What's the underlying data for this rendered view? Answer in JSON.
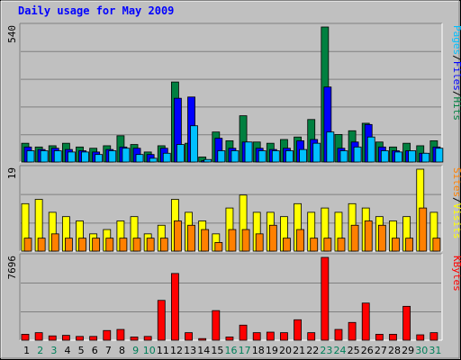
{
  "chart_data": {
    "type": "bar",
    "title": "Daily usage for May 2009",
    "categories": [
      "1",
      "2",
      "3",
      "4",
      "5",
      "6",
      "7",
      "8",
      "9",
      "10",
      "11",
      "12",
      "13",
      "14",
      "15",
      "16",
      "17",
      "18",
      "19",
      "20",
      "21",
      "22",
      "23",
      "24",
      "25",
      "26",
      "27",
      "28",
      "29",
      "30",
      "31"
    ],
    "weekend_days": [
      "2",
      "3",
      "9",
      "10",
      "16",
      "17",
      "23",
      "24",
      "30",
      "31"
    ],
    "panels": [
      {
        "id": "hits",
        "ymax_label": "540",
        "ymax": 540,
        "legend": [
          {
            "text": "Pages",
            "color": "#00c0ff"
          },
          {
            "text": "Files",
            "color": "#0000ff"
          },
          {
            "text": "Hits",
            "color": "#008040"
          }
        ],
        "series": [
          {
            "name": "Hits",
            "color": "#008040",
            "values": [
              75,
              60,
              65,
              75,
              60,
              55,
              65,
              105,
              70,
              40,
              65,
              320,
              75,
              20,
              120,
              85,
              185,
              80,
              75,
              90,
              100,
              170,
              540,
              110,
              125,
              155,
              80,
              60,
              75,
              65,
              85
            ]
          },
          {
            "name": "Files",
            "color": "#0000ff",
            "values": [
              60,
              50,
              55,
              50,
              45,
              40,
              50,
              60,
              55,
              30,
              55,
              255,
              260,
              5,
              95,
              55,
              80,
              55,
              50,
              55,
              85,
              90,
              300,
              55,
              80,
              150,
              60,
              45,
              45,
              35,
              60
            ]
          },
          {
            "name": "Pages",
            "color": "#00c0ff",
            "values": [
              45,
              45,
              45,
              40,
              40,
              30,
              45,
              55,
              30,
              15,
              35,
              70,
              145,
              10,
              45,
              45,
              80,
              45,
              45,
              45,
              50,
              75,
              120,
              45,
              60,
              100,
              45,
              40,
              45,
              35,
              55
            ]
          }
        ]
      },
      {
        "id": "visits",
        "ymax_label": "19",
        "ymax": 19,
        "legend": [
          {
            "text": "Sites",
            "color": "#ff8000"
          },
          {
            "text": "Visits",
            "color": "#ffff00"
          }
        ],
        "series": [
          {
            "name": "Visits",
            "color": "#ffff00",
            "values": [
              11,
              12,
              9,
              8,
              7,
              4,
              5,
              7,
              8,
              4,
              6,
              12,
              9,
              7,
              4,
              10,
              13,
              9,
              9,
              8,
              11,
              9,
              10,
              9,
              11,
              10,
              8,
              7,
              8,
              19,
              9
            ]
          },
          {
            "name": "Sites",
            "color": "#ff8000",
            "values": [
              3,
              3,
              4,
              3,
              3,
              3,
              3,
              3,
              3,
              3,
              3,
              7,
              6,
              5,
              2,
              5,
              5,
              4,
              6,
              3,
              5,
              3,
              3,
              3,
              6,
              7,
              6,
              3,
              3,
              10,
              3
            ]
          }
        ]
      },
      {
        "id": "kbytes",
        "ymax_label": "7696",
        "ymax": 7696,
        "legend": [
          {
            "text": "KBytes",
            "color": "#ff0000"
          }
        ],
        "series": [
          {
            "name": "KBytes",
            "color": "#ff0000",
            "values": [
              550,
              700,
              400,
              450,
              350,
              350,
              900,
              1000,
              300,
              350,
              3700,
              6200,
              700,
              150,
              2750,
              300,
              1400,
              700,
              750,
              700,
              1900,
              700,
              7696,
              1000,
              1650,
              3450,
              550,
              550,
              3150,
              500,
              700
            ]
          }
        ]
      }
    ]
  }
}
